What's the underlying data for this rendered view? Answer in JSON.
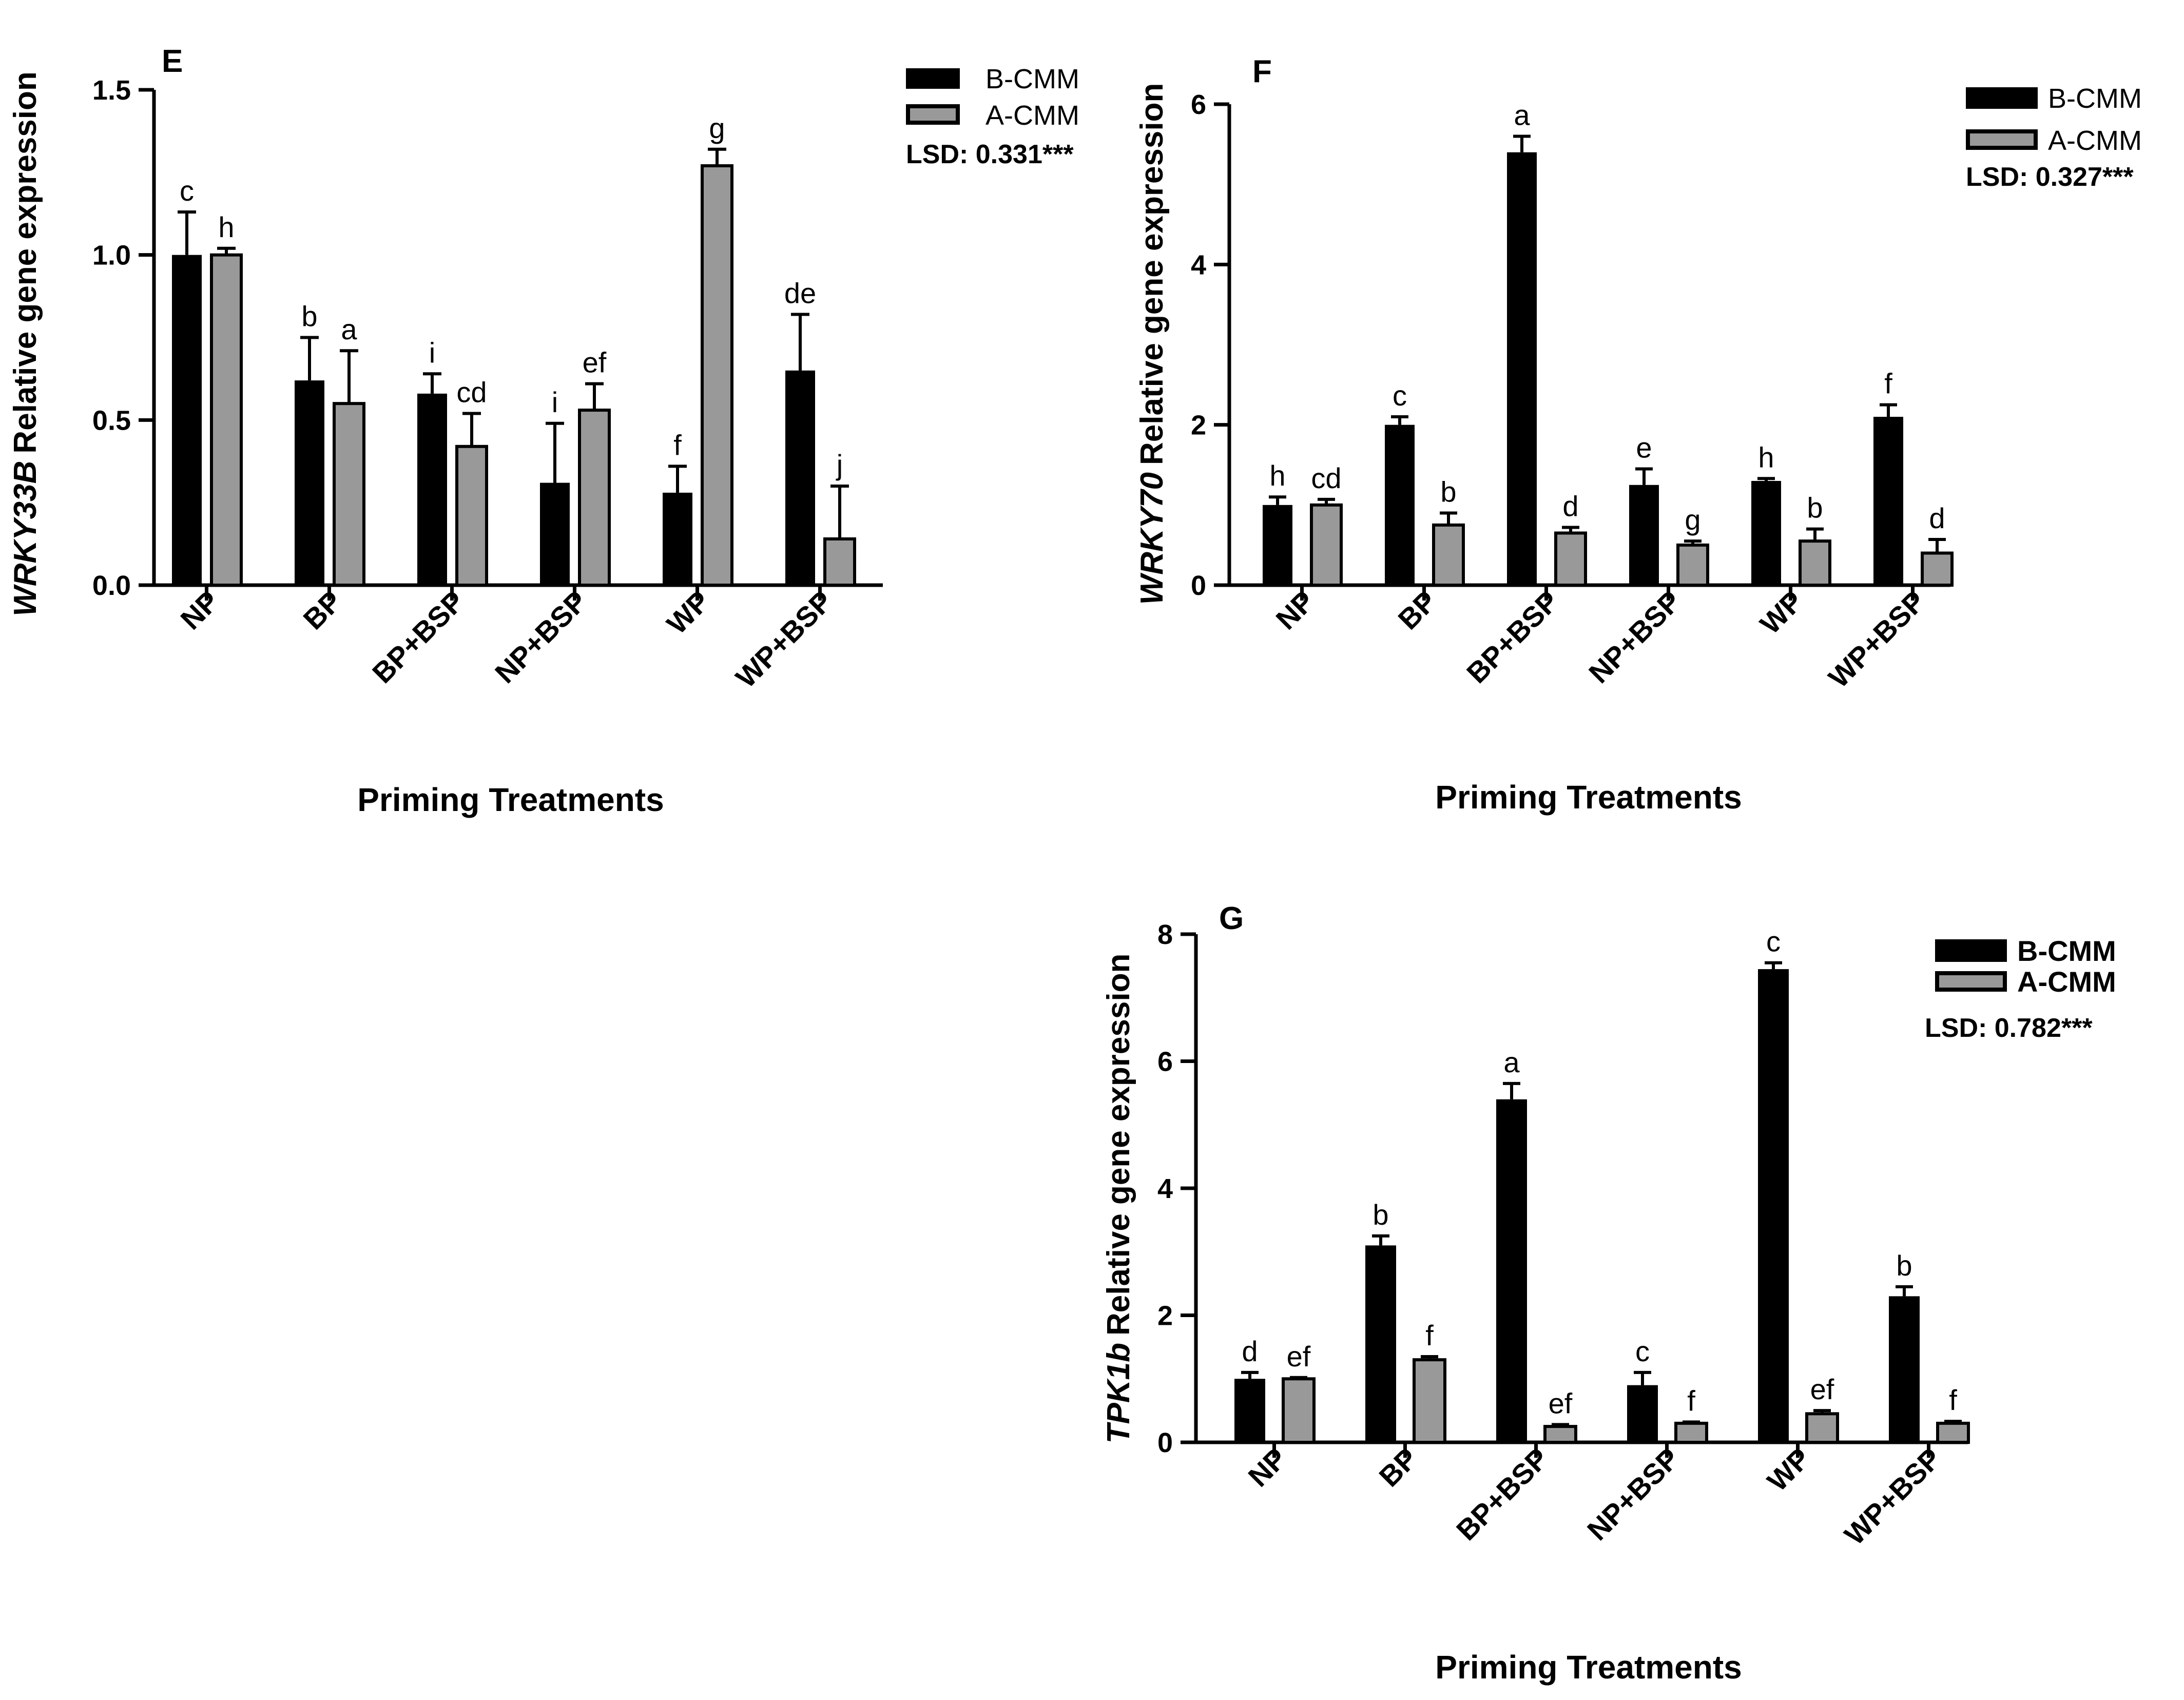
{
  "colors": {
    "b_cmm": "#000000",
    "a_cmm": "#999999",
    "axis": "#000000"
  },
  "chart_data": [
    {
      "panel": "E",
      "type": "bar",
      "gene": "WRKY33B",
      "ylabel_suffix": "Relative gene expression",
      "xlabel": "Priming Treatments",
      "categories": [
        "NP",
        "BP",
        "BP+BSP",
        "NP+BSP",
        "WP",
        "WP+BSP"
      ],
      "ylim": [
        0,
        1.5
      ],
      "yticks": [
        "0.0",
        "0.5",
        "1.0",
        "1.5"
      ],
      "series": [
        {
          "name": "B-CMM",
          "values": [
            1.0,
            0.62,
            0.58,
            0.31,
            0.28,
            0.65
          ],
          "errors": [
            0.13,
            0.13,
            0.06,
            0.18,
            0.08,
            0.17
          ],
          "letters": [
            "c",
            "b",
            "i",
            "i",
            "f",
            "de"
          ]
        },
        {
          "name": "A-CMM",
          "values": [
            1.0,
            0.55,
            0.42,
            0.53,
            1.27,
            0.14
          ],
          "errors": [
            0.02,
            0.16,
            0.1,
            0.08,
            0.05,
            0.16
          ],
          "letters": [
            "h",
            "a",
            "cd",
            "ef",
            "g",
            "j"
          ]
        }
      ],
      "lsd": "LSD: 0.331***"
    },
    {
      "panel": "F",
      "type": "bar",
      "gene": "WRKY70",
      "ylabel_suffix": "Relative gene expression",
      "xlabel": "Priming Treatments",
      "categories": [
        "NP",
        "BP",
        "BP+BSP",
        "NP+BSP",
        "WP",
        "WP+BSP"
      ],
      "ylim": [
        0,
        6
      ],
      "yticks": [
        "0",
        "2",
        "4",
        "6"
      ],
      "series": [
        {
          "name": "B-CMM",
          "values": [
            1.0,
            2.0,
            5.4,
            1.25,
            1.3,
            2.1
          ],
          "errors": [
            0.1,
            0.1,
            0.2,
            0.2,
            0.03,
            0.15
          ],
          "letters": [
            "h",
            "c",
            "a",
            "e",
            "h",
            "f"
          ]
        },
        {
          "name": "A-CMM",
          "values": [
            1.0,
            0.75,
            0.65,
            0.5,
            0.55,
            0.4
          ],
          "errors": [
            0.07,
            0.15,
            0.07,
            0.05,
            0.15,
            0.17
          ],
          "letters": [
            "cd",
            "b",
            "d",
            "g",
            "b",
            "d"
          ]
        }
      ],
      "lsd": "LSD: 0.327***"
    },
    {
      "panel": "G",
      "type": "bar",
      "gene": "TPK1b",
      "ylabel_suffix": "Relative gene expression",
      "xlabel": "Priming Treatments",
      "categories": [
        "NP",
        "BP",
        "BP+BSP",
        "NP+BSP",
        "WP",
        "WP+BSP"
      ],
      "ylim": [
        0,
        8
      ],
      "yticks": [
        "0",
        "2",
        "4",
        "6",
        "8"
      ],
      "series": [
        {
          "name": "B-CMM",
          "values": [
            1.0,
            3.1,
            5.4,
            0.9,
            7.45,
            2.3
          ],
          "errors": [
            0.1,
            0.15,
            0.25,
            0.2,
            0.1,
            0.15
          ],
          "letters": [
            "d",
            "b",
            "a",
            "c",
            "c",
            "b"
          ]
        },
        {
          "name": "A-CMM",
          "values": [
            1.0,
            1.3,
            0.25,
            0.3,
            0.45,
            0.3
          ],
          "errors": [
            0.02,
            0.05,
            0.03,
            0.02,
            0.05,
            0.03
          ],
          "letters": [
            "ef",
            "f",
            "ef",
            "f",
            "ef",
            "f"
          ]
        }
      ],
      "lsd": "LSD: 0.782***"
    }
  ]
}
